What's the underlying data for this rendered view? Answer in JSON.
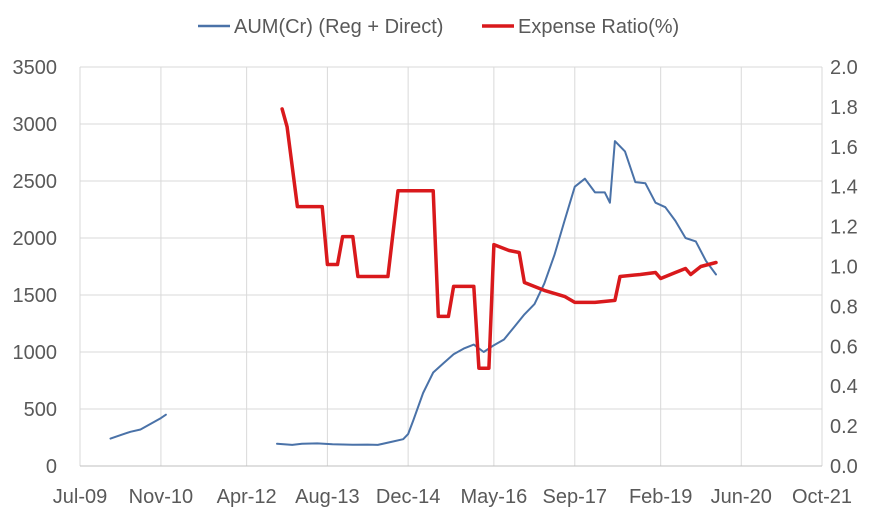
{
  "chart_data": {
    "type": "line",
    "title": "",
    "xlabel": "",
    "ylabel": "",
    "y2label": "",
    "legend": {
      "placement": "top"
    },
    "grid": {
      "vertical": true,
      "horizontal": true
    },
    "x_range": [
      "2009-07-01",
      "2021-10-01"
    ],
    "x_ticks": [
      "Jul-09",
      "Nov-10",
      "Apr-12",
      "Aug-13",
      "Dec-14",
      "May-16",
      "Sep-17",
      "Feb-19",
      "Jun-20",
      "Oct-21"
    ],
    "x_tick_dates": [
      "2009-07-01",
      "2010-11-01",
      "2012-04-01",
      "2013-08-01",
      "2014-12-01",
      "2016-05-01",
      "2017-09-01",
      "2019-02-01",
      "2020-06-01",
      "2021-10-01"
    ],
    "y_left": {
      "min": 0,
      "max": 3500,
      "step": 500,
      "ticks": [
        "0",
        "500",
        "1000",
        "1500",
        "2000",
        "2500",
        "3000",
        "3500"
      ]
    },
    "y_right": {
      "min": 0,
      "max": 2.0,
      "step": 0.2,
      "ticks": [
        "0.0",
        "0.2",
        "0.4",
        "0.6",
        "0.8",
        "1.0",
        "1.2",
        "1.4",
        "1.6",
        "1.8",
        "2.0"
      ]
    },
    "series": [
      {
        "name": "AUM(Cr) (Reg + Direct)",
        "axis": "left",
        "color": "#4a72a8",
        "segments": [
          [
            [
              "2010-01-01",
              240
            ],
            [
              "2010-03-01",
              270
            ],
            [
              "2010-05-01",
              300
            ],
            [
              "2010-07-01",
              320
            ],
            [
              "2010-09-01",
              370
            ],
            [
              "2010-11-01",
              420
            ],
            [
              "2010-12-01",
              450
            ]
          ],
          [
            [
              "2012-10-01",
              195
            ],
            [
              "2013-01-01",
              185
            ],
            [
              "2013-03-01",
              195
            ],
            [
              "2013-06-01",
              198
            ],
            [
              "2013-09-01",
              190
            ],
            [
              "2014-01-01",
              186
            ],
            [
              "2014-04-01",
              188
            ],
            [
              "2014-06-01",
              185
            ],
            [
              "2014-09-01",
              215
            ],
            [
              "2014-11-01",
              235
            ],
            [
              "2014-12-01",
              280
            ],
            [
              "2015-01-01",
              400
            ],
            [
              "2015-03-01",
              640
            ],
            [
              "2015-05-01",
              820
            ],
            [
              "2015-07-01",
              900
            ],
            [
              "2015-09-01",
              980
            ],
            [
              "2015-11-01",
              1030
            ],
            [
              "2016-01-01",
              1065
            ],
            [
              "2016-03-01",
              1000
            ],
            [
              "2016-05-01",
              1060
            ],
            [
              "2016-07-01",
              1110
            ],
            [
              "2016-09-01",
              1220
            ],
            [
              "2016-11-01",
              1330
            ],
            [
              "2017-01-01",
              1420
            ],
            [
              "2017-03-01",
              1600
            ],
            [
              "2017-05-01",
              1850
            ],
            [
              "2017-07-01",
              2150
            ],
            [
              "2017-09-01",
              2450
            ],
            [
              "2017-11-01",
              2520
            ],
            [
              "2018-01-01",
              2400
            ],
            [
              "2018-03-01",
              2400
            ],
            [
              "2018-04-01",
              2310
            ],
            [
              "2018-05-01",
              2850
            ],
            [
              "2018-07-01",
              2760
            ],
            [
              "2018-09-01",
              2490
            ],
            [
              "2018-11-01",
              2480
            ],
            [
              "2019-01-01",
              2310
            ],
            [
              "2019-03-01",
              2270
            ],
            [
              "2019-05-01",
              2150
            ],
            [
              "2019-07-01",
              2000
            ],
            [
              "2019-09-01",
              1970
            ],
            [
              "2019-11-01",
              1800
            ],
            [
              "2020-01-01",
              1680
            ]
          ]
        ]
      },
      {
        "name": "Expense Ratio(%)",
        "axis": "right",
        "color": "#d9191c",
        "segments": [
          [
            [
              "2012-11-01",
              1.79
            ],
            [
              "2012-12-01",
              1.7
            ],
            [
              "2013-02-01",
              1.3
            ],
            [
              "2013-05-01",
              1.3
            ],
            [
              "2013-07-01",
              1.3
            ],
            [
              "2013-08-01",
              1.01
            ],
            [
              "2013-10-01",
              1.01
            ],
            [
              "2013-11-01",
              1.15
            ],
            [
              "2014-01-01",
              1.15
            ],
            [
              "2014-02-01",
              0.95
            ],
            [
              "2014-05-01",
              0.95
            ],
            [
              "2014-08-01",
              0.95
            ],
            [
              "2014-10-01",
              1.38
            ],
            [
              "2015-02-01",
              1.38
            ],
            [
              "2015-05-01",
              1.38
            ],
            [
              "2015-06-01",
              0.75
            ],
            [
              "2015-08-01",
              0.75
            ],
            [
              "2015-09-01",
              0.9
            ],
            [
              "2016-01-01",
              0.9
            ],
            [
              "2016-02-01",
              0.49
            ],
            [
              "2016-04-01",
              0.49
            ],
            [
              "2016-05-01",
              1.11
            ],
            [
              "2016-08-01",
              1.08
            ],
            [
              "2016-10-01",
              1.07
            ],
            [
              "2016-11-01",
              0.92
            ],
            [
              "2017-03-01",
              0.88
            ],
            [
              "2017-07-01",
              0.85
            ],
            [
              "2017-09-01",
              0.82
            ],
            [
              "2018-01-01",
              0.82
            ],
            [
              "2018-05-01",
              0.83
            ],
            [
              "2018-06-01",
              0.95
            ],
            [
              "2018-10-01",
              0.96
            ],
            [
              "2019-01-01",
              0.97
            ],
            [
              "2019-02-01",
              0.94
            ],
            [
              "2019-05-01",
              0.97
            ],
            [
              "2019-07-01",
              0.99
            ],
            [
              "2019-08-01",
              0.96
            ],
            [
              "2019-10-01",
              1.0
            ],
            [
              "2020-01-01",
              1.02
            ]
          ]
        ]
      }
    ]
  }
}
